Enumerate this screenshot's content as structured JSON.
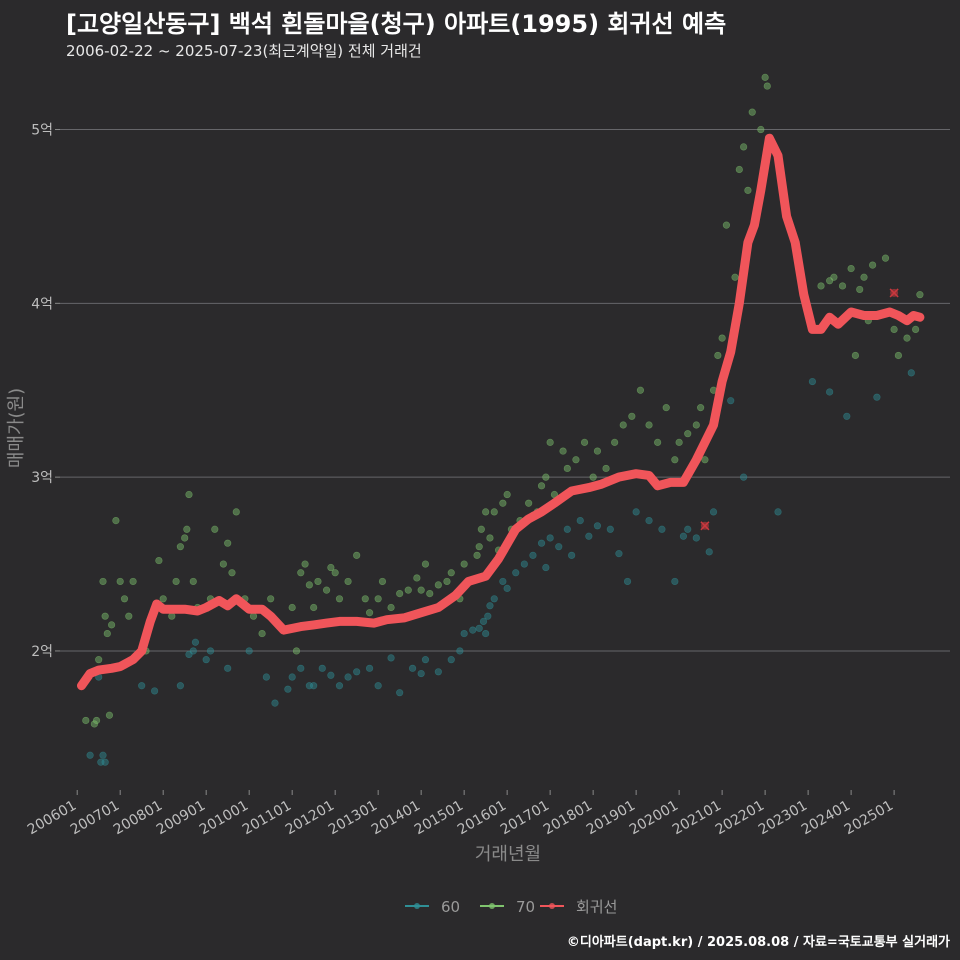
{
  "chart_data": {
    "type": "scatter",
    "title": "[고양일산동구] 백석 흰돌마을(청구) 아파트(1995) 회귀선 예측",
    "subtitle": "2006-02-22 ~ 2025-07-23(최근계약일) 전체 거래건",
    "xlabel": "거래년월",
    "ylabel": "매매가(원)",
    "caption": "©디아파트(dapt.kr) / 2025.08.08 / 자료=국토교통부 실거래가",
    "xlim": [
      2005.6,
      2026.3
    ],
    "ylim": [
      1.2,
      5.4
    ],
    "y_ticks": [
      {
        "v": 2,
        "label": "2억"
      },
      {
        "v": 3,
        "label": "3억"
      },
      {
        "v": 4,
        "label": "4억"
      },
      {
        "v": 5,
        "label": "5억"
      }
    ],
    "x_ticks": [
      {
        "v": 2006,
        "label": "200601"
      },
      {
        "v": 2007,
        "label": "200701"
      },
      {
        "v": 2008,
        "label": "200801"
      },
      {
        "v": 2009,
        "label": "200901"
      },
      {
        "v": 2010,
        "label": "201001"
      },
      {
        "v": 2011,
        "label": "201101"
      },
      {
        "v": 2012,
        "label": "201201"
      },
      {
        "v": 2013,
        "label": "201301"
      },
      {
        "v": 2014,
        "label": "201401"
      },
      {
        "v": 2015,
        "label": "201501"
      },
      {
        "v": 2016,
        "label": "201601"
      },
      {
        "v": 2017,
        "label": "201701"
      },
      {
        "v": 2018,
        "label": "201801"
      },
      {
        "v": 2019,
        "label": "201901"
      },
      {
        "v": 2020,
        "label": "202001"
      },
      {
        "v": 2021,
        "label": "202101"
      },
      {
        "v": 2022,
        "label": "202201"
      },
      {
        "v": 2023,
        "label": "202301"
      },
      {
        "v": 2024,
        "label": "202401"
      },
      {
        "v": 2025,
        "label": "202501"
      }
    ],
    "legend": {
      "position": "bottom",
      "items": [
        {
          "name": "60",
          "color": "#2f8f96"
        },
        {
          "name": "70",
          "color": "#7fc46e"
        },
        {
          "name": "회귀선",
          "color": "#f0555a"
        }
      ]
    },
    "series": [
      {
        "name": "60",
        "color": "#2f8f96",
        "points": [
          [
            2006.3,
            1.4
          ],
          [
            2006.55,
            1.36
          ],
          [
            2006.6,
            1.4
          ],
          [
            2006.65,
            1.36
          ],
          [
            2006.5,
            1.85
          ],
          [
            2007.5,
            1.8
          ],
          [
            2007.8,
            1.77
          ],
          [
            2008.4,
            1.8
          ],
          [
            2008.7,
            2.0
          ],
          [
            2008.75,
            2.05
          ],
          [
            2008.6,
            1.98
          ],
          [
            2009.5,
            1.9
          ],
          [
            2009.0,
            1.95
          ],
          [
            2009.1,
            2.0
          ],
          [
            2010.0,
            2.0
          ],
          [
            2010.4,
            1.85
          ],
          [
            2010.6,
            1.7
          ],
          [
            2010.9,
            1.78
          ],
          [
            2011.0,
            1.85
          ],
          [
            2011.2,
            1.9
          ],
          [
            2011.4,
            1.8
          ],
          [
            2011.5,
            1.8
          ],
          [
            2011.7,
            1.9
          ],
          [
            2011.9,
            1.86
          ],
          [
            2012.1,
            1.8
          ],
          [
            2012.3,
            1.85
          ],
          [
            2012.5,
            1.88
          ],
          [
            2012.8,
            1.9
          ],
          [
            2013.0,
            1.8
          ],
          [
            2013.3,
            1.96
          ],
          [
            2013.5,
            1.76
          ],
          [
            2013.8,
            1.9
          ],
          [
            2014.0,
            1.87
          ],
          [
            2014.1,
            1.95
          ],
          [
            2014.4,
            1.88
          ],
          [
            2014.7,
            1.95
          ],
          [
            2014.9,
            2.0
          ],
          [
            2015.0,
            2.1
          ],
          [
            2015.2,
            2.12
          ],
          [
            2015.35,
            2.13
          ],
          [
            2015.45,
            2.17
          ],
          [
            2015.5,
            2.1
          ],
          [
            2015.55,
            2.2
          ],
          [
            2015.6,
            2.26
          ],
          [
            2015.7,
            2.3
          ],
          [
            2015.9,
            2.4
          ],
          [
            2016.0,
            2.36
          ],
          [
            2016.2,
            2.45
          ],
          [
            2016.4,
            2.5
          ],
          [
            2016.6,
            2.55
          ],
          [
            2016.8,
            2.62
          ],
          [
            2016.9,
            2.48
          ],
          [
            2017.0,
            2.65
          ],
          [
            2017.2,
            2.6
          ],
          [
            2017.4,
            2.7
          ],
          [
            2017.5,
            2.55
          ],
          [
            2017.7,
            2.75
          ],
          [
            2017.9,
            2.66
          ],
          [
            2018.1,
            2.72
          ],
          [
            2018.4,
            2.7
          ],
          [
            2018.6,
            2.56
          ],
          [
            2018.8,
            2.4
          ],
          [
            2019.0,
            2.8
          ],
          [
            2019.3,
            2.75
          ],
          [
            2019.6,
            2.7
          ],
          [
            2019.9,
            2.4
          ],
          [
            2020.1,
            2.66
          ],
          [
            2020.2,
            2.7
          ],
          [
            2020.4,
            2.65
          ],
          [
            2020.7,
            2.57
          ],
          [
            2020.8,
            2.8
          ],
          [
            2021.2,
            3.44
          ],
          [
            2021.5,
            3.0
          ],
          [
            2022.3,
            2.8
          ],
          [
            2023.1,
            3.55
          ],
          [
            2023.5,
            3.49
          ],
          [
            2023.9,
            3.35
          ],
          [
            2024.6,
            3.46
          ],
          [
            2025.4,
            3.6
          ]
        ]
      },
      {
        "name": "70",
        "color": "#7fc46e",
        "points": [
          [
            2006.2,
            1.6
          ],
          [
            2006.4,
            1.58
          ],
          [
            2006.45,
            1.6
          ],
          [
            2006.5,
            1.95
          ],
          [
            2006.6,
            2.4
          ],
          [
            2006.65,
            2.2
          ],
          [
            2006.7,
            2.1
          ],
          [
            2006.75,
            1.63
          ],
          [
            2006.8,
            2.15
          ],
          [
            2006.9,
            2.75
          ],
          [
            2007.0,
            2.4
          ],
          [
            2007.1,
            2.3
          ],
          [
            2007.2,
            2.2
          ],
          [
            2007.3,
            2.4
          ],
          [
            2007.6,
            2.0
          ],
          [
            2007.9,
            2.52
          ],
          [
            2008.0,
            2.3
          ],
          [
            2008.2,
            2.2
          ],
          [
            2008.3,
            2.4
          ],
          [
            2008.4,
            2.6
          ],
          [
            2008.5,
            2.65
          ],
          [
            2008.55,
            2.7
          ],
          [
            2008.6,
            2.9
          ],
          [
            2008.7,
            2.4
          ],
          [
            2008.8,
            2.25
          ],
          [
            2009.1,
            2.3
          ],
          [
            2009.2,
            2.7
          ],
          [
            2009.4,
            2.5
          ],
          [
            2009.5,
            2.62
          ],
          [
            2009.6,
            2.45
          ],
          [
            2009.7,
            2.8
          ],
          [
            2009.9,
            2.3
          ],
          [
            2010.1,
            2.2
          ],
          [
            2010.3,
            2.1
          ],
          [
            2010.5,
            2.3
          ],
          [
            2010.7,
            2.15
          ],
          [
            2011.0,
            2.25
          ],
          [
            2011.1,
            2.0
          ],
          [
            2011.2,
            2.45
          ],
          [
            2011.3,
            2.5
          ],
          [
            2011.4,
            2.38
          ],
          [
            2011.5,
            2.25
          ],
          [
            2011.6,
            2.4
          ],
          [
            2011.8,
            2.35
          ],
          [
            2011.9,
            2.48
          ],
          [
            2012.0,
            2.45
          ],
          [
            2012.1,
            2.3
          ],
          [
            2012.3,
            2.4
          ],
          [
            2012.5,
            2.55
          ],
          [
            2012.7,
            2.3
          ],
          [
            2012.8,
            2.22
          ],
          [
            2013.0,
            2.3
          ],
          [
            2013.1,
            2.4
          ],
          [
            2013.3,
            2.25
          ],
          [
            2013.5,
            2.33
          ],
          [
            2013.7,
            2.35
          ],
          [
            2013.9,
            2.42
          ],
          [
            2014.0,
            2.35
          ],
          [
            2014.1,
            2.5
          ],
          [
            2014.2,
            2.33
          ],
          [
            2014.4,
            2.38
          ],
          [
            2014.6,
            2.4
          ],
          [
            2014.7,
            2.45
          ],
          [
            2014.9,
            2.3
          ],
          [
            2015.0,
            2.5
          ],
          [
            2015.1,
            2.4
          ],
          [
            2015.3,
            2.55
          ],
          [
            2015.35,
            2.6
          ],
          [
            2015.4,
            2.7
          ],
          [
            2015.5,
            2.8
          ],
          [
            2015.6,
            2.65
          ],
          [
            2015.7,
            2.8
          ],
          [
            2015.8,
            2.58
          ],
          [
            2015.9,
            2.85
          ],
          [
            2016.0,
            2.9
          ],
          [
            2016.1,
            2.7
          ],
          [
            2016.3,
            2.75
          ],
          [
            2016.5,
            2.85
          ],
          [
            2016.6,
            2.78
          ],
          [
            2016.7,
            2.8
          ],
          [
            2016.8,
            2.95
          ],
          [
            2016.9,
            3.0
          ],
          [
            2017.0,
            3.2
          ],
          [
            2017.1,
            2.9
          ],
          [
            2017.3,
            3.15
          ],
          [
            2017.4,
            3.05
          ],
          [
            2017.6,
            3.1
          ],
          [
            2017.8,
            3.2
          ],
          [
            2018.0,
            3.0
          ],
          [
            2018.1,
            3.15
          ],
          [
            2018.3,
            3.05
          ],
          [
            2018.5,
            3.2
          ],
          [
            2018.7,
            3.3
          ],
          [
            2018.9,
            3.35
          ],
          [
            2019.1,
            3.5
          ],
          [
            2019.3,
            3.3
          ],
          [
            2019.5,
            3.2
          ],
          [
            2019.7,
            3.4
          ],
          [
            2019.9,
            3.1
          ],
          [
            2020.0,
            3.2
          ],
          [
            2020.2,
            3.25
          ],
          [
            2020.4,
            3.3
          ],
          [
            2020.5,
            3.4
          ],
          [
            2020.6,
            3.1
          ],
          [
            2020.8,
            3.5
          ],
          [
            2020.9,
            3.7
          ],
          [
            2021.0,
            3.8
          ],
          [
            2021.1,
            4.45
          ],
          [
            2021.3,
            4.15
          ],
          [
            2021.4,
            4.77
          ],
          [
            2021.5,
            4.9
          ],
          [
            2021.6,
            4.65
          ],
          [
            2021.7,
            5.1
          ],
          [
            2021.9,
            5.0
          ],
          [
            2022.0,
            5.3
          ],
          [
            2022.05,
            5.25
          ],
          [
            2022.2,
            4.9
          ],
          [
            2022.4,
            4.67
          ],
          [
            2023.3,
            4.1
          ],
          [
            2023.5,
            4.13
          ],
          [
            2023.6,
            4.15
          ],
          [
            2023.8,
            4.1
          ],
          [
            2024.0,
            4.2
          ],
          [
            2024.2,
            4.08
          ],
          [
            2024.3,
            4.15
          ],
          [
            2024.5,
            4.22
          ],
          [
            2024.8,
            4.26
          ],
          [
            2025.0,
            3.85
          ],
          [
            2025.1,
            3.7
          ],
          [
            2025.3,
            3.8
          ],
          [
            2025.5,
            3.85
          ],
          [
            2025.6,
            4.05
          ],
          [
            2024.4,
            3.9
          ],
          [
            2024.1,
            3.7
          ]
        ]
      }
    ],
    "regression": {
      "name": "회귀선",
      "color": "#f0555a",
      "points": [
        [
          2006.1,
          1.8
        ],
        [
          2006.3,
          1.87
        ],
        [
          2006.5,
          1.89
        ],
        [
          2006.8,
          1.9
        ],
        [
          2007.0,
          1.91
        ],
        [
          2007.3,
          1.95
        ],
        [
          2007.5,
          2.0
        ],
        [
          2007.7,
          2.17
        ],
        [
          2007.85,
          2.27
        ],
        [
          2008.0,
          2.24
        ],
        [
          2008.5,
          2.24
        ],
        [
          2008.8,
          2.23
        ],
        [
          2009.0,
          2.25
        ],
        [
          2009.3,
          2.29
        ],
        [
          2009.5,
          2.26
        ],
        [
          2009.7,
          2.3
        ],
        [
          2010.0,
          2.24
        ],
        [
          2010.3,
          2.24
        ],
        [
          2010.5,
          2.2
        ],
        [
          2010.8,
          2.12
        ],
        [
          2011.2,
          2.14
        ],
        [
          2011.5,
          2.15
        ],
        [
          2011.8,
          2.16
        ],
        [
          2012.1,
          2.17
        ],
        [
          2012.5,
          2.17
        ],
        [
          2012.9,
          2.16
        ],
        [
          2013.2,
          2.18
        ],
        [
          2013.6,
          2.19
        ],
        [
          2014.0,
          2.22
        ],
        [
          2014.4,
          2.25
        ],
        [
          2014.8,
          2.32
        ],
        [
          2015.1,
          2.4
        ],
        [
          2015.5,
          2.43
        ],
        [
          2015.8,
          2.53
        ],
        [
          2016.2,
          2.7
        ],
        [
          2016.5,
          2.76
        ],
        [
          2016.8,
          2.8
        ],
        [
          2017.1,
          2.85
        ],
        [
          2017.5,
          2.92
        ],
        [
          2017.9,
          2.94
        ],
        [
          2018.2,
          2.96
        ],
        [
          2018.6,
          3.0
        ],
        [
          2019.0,
          3.02
        ],
        [
          2019.3,
          3.01
        ],
        [
          2019.5,
          2.95
        ],
        [
          2019.8,
          2.97
        ],
        [
          2020.1,
          2.97
        ],
        [
          2020.4,
          3.1
        ],
        [
          2020.6,
          3.2
        ],
        [
          2020.8,
          3.3
        ],
        [
          2021.0,
          3.55
        ],
        [
          2021.2,
          3.72
        ],
        [
          2021.4,
          4.0
        ],
        [
          2021.6,
          4.35
        ],
        [
          2021.75,
          4.45
        ],
        [
          2021.9,
          4.65
        ],
        [
          2022.1,
          4.95
        ],
        [
          2022.3,
          4.85
        ],
        [
          2022.5,
          4.5
        ],
        [
          2022.7,
          4.35
        ],
        [
          2022.9,
          4.05
        ],
        [
          2023.1,
          3.85
        ],
        [
          2023.3,
          3.85
        ],
        [
          2023.5,
          3.92
        ],
        [
          2023.7,
          3.88
        ],
        [
          2024.0,
          3.95
        ],
        [
          2024.3,
          3.93
        ],
        [
          2024.6,
          3.93
        ],
        [
          2024.9,
          3.95
        ],
        [
          2025.1,
          3.93
        ],
        [
          2025.3,
          3.9
        ],
        [
          2025.45,
          3.93
        ],
        [
          2025.6,
          3.92
        ]
      ]
    },
    "excluded_marks": [
      {
        "x": 2020.6,
        "y": 2.72,
        "color": "#c9383e"
      },
      {
        "x": 2025.0,
        "y": 4.06,
        "color": "#c9383e"
      }
    ]
  }
}
